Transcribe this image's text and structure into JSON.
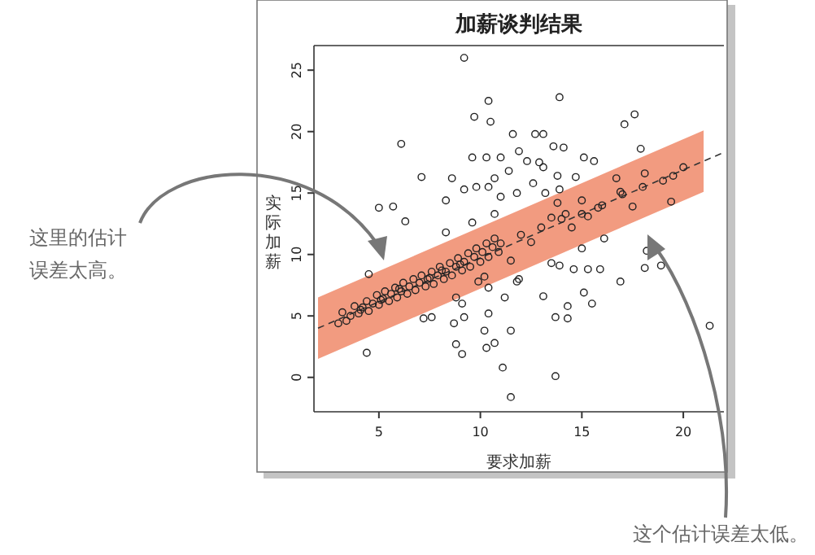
{
  "chart_data": {
    "type": "scatter",
    "title": "加薪谈判结果",
    "xlabel": "要求加薪",
    "ylabel": "实际加薪",
    "annotations": [
      "这里的估计误差太高。",
      "这个估计误差太低。"
    ],
    "xlim": [
      1.8,
      22
    ],
    "ylim": [
      -2.8,
      27
    ],
    "xticks": [
      5,
      10,
      15,
      20
    ],
    "yticks": [
      0,
      5,
      10,
      15,
      20,
      25
    ],
    "grid": false,
    "series": [
      {
        "type": "line",
        "color": "#333333",
        "line_style": "dashed",
        "marker": "none",
        "x": [
          2,
          21,
          22
        ],
        "values": [
          4.0,
          17.6,
          18.3
        ],
        "lower": [
          1.5,
          15.1,
          null
        ],
        "upper": [
          6.5,
          20.1,
          null
        ]
      },
      {
        "color": "#222222",
        "marker": "circle",
        "x": [
          9.2,
          10.4,
          13.9,
          9.7,
          10.5,
          17.6,
          17.1,
          6.1,
          11.6,
          12.7,
          13.1,
          13.6,
          14.1,
          17.9,
          11.9,
          9.6,
          10.3,
          11.0,
          12.3,
          12.9,
          15.1,
          15.6,
          7.1,
          8.6,
          10.7,
          11.4,
          13.1,
          13.8,
          14.7,
          9.2,
          9.8,
          10.4,
          11.0,
          11.8,
          12.6,
          13.2,
          13.9,
          16.7,
          18.1,
          19.5,
          5.0,
          5.7,
          6.3,
          8.3,
          9.6,
          10.7,
          17.5,
          19.4,
          16.1,
          15.8,
          16.9,
          15.0,
          14.2,
          15.3,
          13.8,
          8.3,
          11.5,
          11.9,
          13.1,
          13.5,
          13.9,
          15.0,
          14.6,
          15.3,
          15.9,
          15.1,
          15.5,
          14.3,
          13.7,
          14.3,
          16.9,
          18.1,
          18.9,
          18.2,
          21.3,
          13.7,
          11.5,
          11.1,
          10.3,
          10.7,
          10.2,
          11.5,
          10.4,
          9.1,
          8.8,
          8.7,
          9.2,
          7.6,
          7.2,
          4.4,
          4.5,
          9.1,
          10.4,
          11.2,
          11.8,
          9.9,
          8.8,
          10.2,
          3.0,
          3.2,
          3.4,
          3.6,
          3.8,
          4.0,
          4.2,
          4.4,
          4.5,
          4.7,
          4.9,
          5.0,
          5.2,
          5.3,
          5.5,
          5.6,
          5.8,
          5.9,
          6.1,
          6.2,
          6.4,
          6.5,
          6.7,
          6.8,
          7.0,
          7.1,
          7.3,
          7.4,
          7.6,
          7.7,
          7.9,
          8.0,
          8.2,
          8.3,
          8.5,
          8.6,
          8.8,
          8.9,
          9.1,
          9.2,
          9.4,
          9.5,
          9.7,
          9.8,
          10.0,
          10.1,
          10.3,
          10.4,
          10.6,
          10.7,
          10.9,
          11.0,
          6.0,
          7.5,
          9.0,
          5.1,
          4.1,
          8.1,
          12.0,
          13.0,
          14.0,
          15.0,
          16.0,
          17.0,
          18.0,
          19.0,
          20.0,
          12.5,
          13.5,
          14.5
        ],
        "values": [
          26.0,
          22.5,
          22.8,
          21.2,
          20.8,
          21.4,
          20.6,
          19.0,
          19.8,
          19.8,
          19.8,
          18.8,
          18.7,
          18.6,
          18.4,
          17.9,
          17.9,
          17.9,
          17.6,
          17.5,
          17.9,
          17.6,
          16.3,
          16.2,
          16.2,
          16.8,
          17.1,
          16.4,
          16.3,
          15.3,
          15.5,
          15.5,
          14.7,
          15.0,
          15.8,
          15.0,
          15.3,
          16.2,
          16.6,
          16.4,
          13.8,
          13.9,
          12.7,
          14.4,
          12.6,
          13.3,
          13.9,
          14.3,
          11.3,
          13.8,
          15.1,
          14.4,
          13.3,
          13.1,
          14.2,
          11.8,
          9.5,
          8.0,
          6.6,
          9.3,
          9.1,
          10.5,
          8.8,
          8.8,
          8.8,
          6.9,
          6.0,
          5.8,
          4.9,
          4.8,
          7.8,
          8.9,
          9.1,
          10.3,
          4.2,
          0.1,
          -1.6,
          0.8,
          2.4,
          2.8,
          3.8,
          3.8,
          5.2,
          1.9,
          2.7,
          4.4,
          4.9,
          4.9,
          4.8,
          2.0,
          8.4,
          6.0,
          7.3,
          6.5,
          7.8,
          7.8,
          6.5,
          8.2,
          4.4,
          5.3,
          4.6,
          5.0,
          5.8,
          5.2,
          5.7,
          6.2,
          5.4,
          6.0,
          6.7,
          5.9,
          6.4,
          7.0,
          6.2,
          6.8,
          7.3,
          6.5,
          7.0,
          7.7,
          6.8,
          7.4,
          8.0,
          7.1,
          7.7,
          8.3,
          7.4,
          8.0,
          8.6,
          7.6,
          8.3,
          9.0,
          8.0,
          8.6,
          9.3,
          8.3,
          9.0,
          9.7,
          8.7,
          9.4,
          10.1,
          9.0,
          9.8,
          10.5,
          9.4,
          10.2,
          10.9,
          9.8,
          10.6,
          11.3,
          10.2,
          10.9,
          7.2,
          8.1,
          9.2,
          6.3,
          5.5,
          8.7,
          11.6,
          12.2,
          12.9,
          13.3,
          14.0,
          14.9,
          15.5,
          16.0,
          17.1,
          11.0,
          13.0,
          12.2
        ]
      }
    ]
  }
}
